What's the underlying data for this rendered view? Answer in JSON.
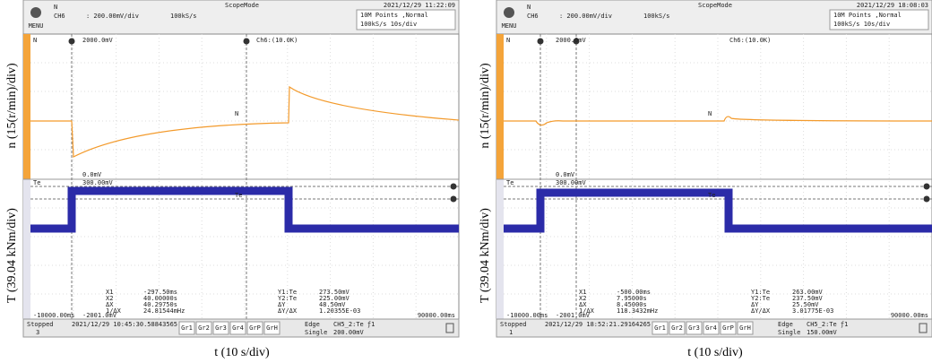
{
  "panels": [
    {
      "y_label_top": "n (15(r/min)/div)",
      "y_label_bottom": "T (39.04 kNm/div)",
      "x_label": "t (10 s/div)",
      "header": {
        "mode": "ScopeMode",
        "datetime": "2021/12/29 11:22:09",
        "menu": "MENU",
        "channel_name": "N",
        "channel": "CH6",
        "scale": ": 200.00mV/div",
        "rate": "100kS/s",
        "points": "10M Points ,Normal",
        "timebase": "100kS/s   10s/div"
      },
      "screen": {
        "top_label": "N",
        "top_level": "2000.0mV",
        "cursor_tag": "Ch6:(10.0K)",
        "mid_label": "N",
        "zero_level": "0.0mV",
        "bottom_label": "Te",
        "bottom_level": "300.00mV",
        "te_label": "Te",
        "t_start": "-10000.00ms",
        "v_min": "-2001.0mV",
        "t_end": "90000.00ms"
      },
      "cursors_x": [
        [
          "X1",
          "-297.50ms"
        ],
        [
          "X2",
          "40.00000s"
        ],
        [
          "ΔX",
          "40.29750s"
        ],
        [
          "1/ΔX",
          "24.81544mHz"
        ]
      ],
      "cursors_y": [
        [
          "Y1:Te",
          "273.50mV"
        ],
        [
          "Y2:Te",
          "225.00mV"
        ],
        [
          "ΔY",
          "48.50mV"
        ],
        [
          "ΔY/ΔX",
          "1.20355E-03"
        ]
      ],
      "footer": {
        "state": "Stopped",
        "count": "3",
        "datetime": "2021/12/29 10:45:30.58843565",
        "groups": [
          "Gr1",
          "Gr2",
          "Gr3",
          "Gr4",
          "GrP",
          "GrH"
        ],
        "trigger": "Edge",
        "trigger_source": "CH5_2:Te ƒ1",
        "mode": "Single",
        "level": "200.00mV"
      }
    },
    {
      "y_label_top": "n (15(r/min)/div)",
      "y_label_bottom": "T (39.04 kNm/div)",
      "x_label": "t (10 s/div)",
      "header": {
        "mode": "ScopeMode",
        "datetime": "2021/12/29 18:08:03",
        "menu": "MENU",
        "channel_name": "N",
        "channel": "CH6",
        "scale": ": 200.00mV/div",
        "rate": "100kS/s",
        "points": "10M Points ,Normal",
        "timebase": "100kS/s   10s/div"
      },
      "screen": {
        "top_label": "N",
        "top_level": "2000.0mV",
        "cursor_tag": "Ch6:(10.0K)",
        "mid_label": "N",
        "zero_level": "0.0mV",
        "bottom_label": "Te",
        "bottom_level": "300.00mV",
        "te_label": "Te",
        "t_start": "-10000.00ms",
        "v_min": "-2001.0mV",
        "t_end": "90000.00ms"
      },
      "cursors_x": [
        [
          "X1",
          "-500.00ms"
        ],
        [
          "X2",
          "7.95000s"
        ],
        [
          "ΔX",
          "8.45000s"
        ],
        [
          "1/ΔX",
          "118.3432mHz"
        ]
      ],
      "cursors_y": [
        [
          "Y1:Te",
          "263.00mV"
        ],
        [
          "Y2:Te",
          "237.50mV"
        ],
        [
          "ΔY",
          "25.50mV"
        ],
        [
          "ΔY/ΔX",
          "3.01775E-03"
        ]
      ],
      "footer": {
        "state": "Stopped",
        "count": "1",
        "datetime": "2021/12/29 18:52:21.29164265",
        "groups": [
          "Gr1",
          "Gr2",
          "Gr3",
          "Gr4",
          "GrP",
          "GrH"
        ],
        "trigger": "Edge",
        "trigger_source": "CH5_2:Te ƒ1",
        "mode": "Single",
        "level": "150.00mV"
      }
    }
  ]
}
